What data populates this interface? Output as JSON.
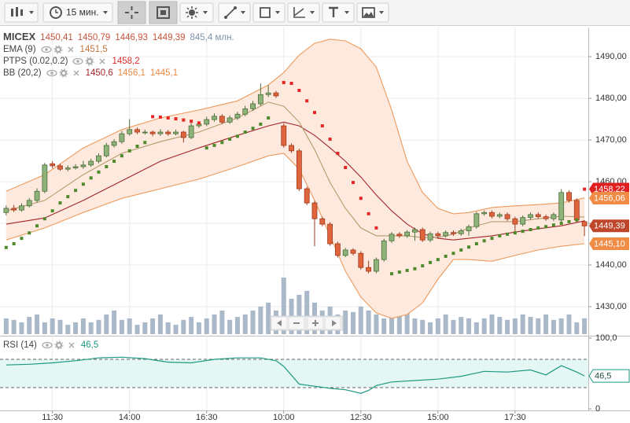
{
  "toolbar": {
    "interval": "15 мин."
  },
  "chart_data": [
    {
      "type": "candlestick",
      "title": "MICEX",
      "ohlc_labels": [
        "1450,41",
        "1450,79",
        "1446,93",
        "1449,39"
      ],
      "ohlc_color": "#c8553d",
      "volume_label": "845,4 млн.",
      "volume_label_color": "#7f93aa",
      "xlim": [
        -0.8,
        75.5
      ],
      "xticks": [
        {
          "value": 6,
          "label": "11:30"
        },
        {
          "value": 16,
          "label": "14:00"
        },
        {
          "value": 26,
          "label": "16:30"
        },
        {
          "value": 36,
          "label": "10:00"
        },
        {
          "value": 46,
          "label": "12:30"
        },
        {
          "value": 56,
          "label": "15:00"
        },
        {
          "value": 66,
          "label": "17:30"
        }
      ],
      "ylim": [
        1423.4,
        1497
      ],
      "yticks": [
        {
          "value": 1430,
          "label": "1430,00"
        },
        {
          "value": 1440,
          "label": "1440,00"
        },
        {
          "value": 1450,
          "label": "1450,00"
        },
        {
          "value": 1460,
          "label": "1460,00"
        },
        {
          "value": 1470,
          "label": "1470,00"
        },
        {
          "value": 1480,
          "label": "1480,00"
        },
        {
          "value": 1490,
          "label": "1490,00"
        }
      ],
      "grid": true,
      "open": [
        1452.6,
        1453.6,
        1453.2,
        1454.2,
        1455.5,
        1457.7,
        1464.3,
        1463.8,
        1463.0,
        1463.3,
        1463.6,
        1464.0,
        1464.9,
        1466.2,
        1468.7,
        1469.6,
        1471.5,
        1472.5,
        1471.9,
        1471.9,
        1471.5,
        1471.9,
        1471.5,
        1471.9,
        1470.6,
        1473.4,
        1473.8,
        1474.9,
        1475.7,
        1474.3,
        1475.3,
        1476.2,
        1477.5,
        1478.7,
        1480.9,
        1481.3,
        1473.4,
        1468.7,
        1467.4,
        1458.3,
        1454.9,
        1451.1,
        1449.8,
        1445.1,
        1442.3,
        1443.6,
        1442.8,
        1439.4,
        1438.5,
        1441.3,
        1445.8,
        1447.4,
        1447.0,
        1447.9,
        1448.5,
        1446.0,
        1447.5,
        1447.0,
        1447.8,
        1447.5,
        1448.2,
        1449.2,
        1452.3,
        1452.6,
        1451.7,
        1452.1,
        1451.1,
        1449.8,
        1451.4,
        1452.1,
        1451.6,
        1451.1,
        1450.8,
        1457.4,
        1455.5,
        1450.41
      ],
      "high": [
        1454.3,
        1454.4,
        1454.8,
        1456.1,
        1458.4,
        1464.5,
        1464.9,
        1464.3,
        1463.9,
        1464.2,
        1465.0,
        1465.5,
        1466.8,
        1469.3,
        1470.2,
        1472.2,
        1475.0,
        1473.0,
        1472.5,
        1472.3,
        1472.6,
        1472.4,
        1472.5,
        1472.2,
        1474.0,
        1474.4,
        1475.6,
        1476.4,
        1476.2,
        1475.9,
        1476.8,
        1478.2,
        1479.4,
        1483.6,
        1483.2,
        1481.8,
        1474.0,
        1469.2,
        1467.9,
        1458.8,
        1455.4,
        1451.6,
        1450.3,
        1445.6,
        1444.1,
        1444.0,
        1443.3,
        1441.0,
        1441.8,
        1446.3,
        1447.9,
        1447.9,
        1448.4,
        1449.0,
        1449.0,
        1448.0,
        1448.0,
        1448.3,
        1448.3,
        1448.7,
        1449.7,
        1452.8,
        1453.1,
        1453.1,
        1452.6,
        1452.6,
        1451.6,
        1451.9,
        1452.6,
        1452.6,
        1452.1,
        1452.6,
        1458.2,
        1457.9,
        1456.0,
        1450.79
      ],
      "low": [
        1451.9,
        1452.7,
        1452.8,
        1453.8,
        1455.0,
        1457.2,
        1463.2,
        1462.6,
        1462.5,
        1462.9,
        1463.1,
        1463.5,
        1464.4,
        1465.8,
        1468.2,
        1469.1,
        1471.0,
        1471.4,
        1471.3,
        1470.9,
        1471.0,
        1471.0,
        1471.1,
        1469.4,
        1470.2,
        1472.9,
        1473.3,
        1474.4,
        1473.8,
        1473.9,
        1474.8,
        1475.7,
        1477.0,
        1478.2,
        1480.3,
        1480.1,
        1468.2,
        1466.9,
        1457.8,
        1454.4,
        1444.5,
        1449.3,
        1444.6,
        1441.8,
        1441.9,
        1442.3,
        1438.9,
        1438.0,
        1438.0,
        1440.8,
        1445.3,
        1446.5,
        1446.5,
        1445.8,
        1445.5,
        1445.5,
        1446.5,
        1446.6,
        1447.0,
        1447.0,
        1447.0,
        1448.7,
        1451.8,
        1451.2,
        1451.2,
        1450.6,
        1447.4,
        1449.3,
        1450.9,
        1451.1,
        1450.6,
        1450.6,
        1450.3,
        1455.0,
        1450.3,
        1446.93
      ],
      "close": [
        1453.6,
        1453.2,
        1454.2,
        1455.5,
        1457.7,
        1464.0,
        1463.8,
        1463.0,
        1463.3,
        1463.6,
        1464.0,
        1464.9,
        1466.2,
        1468.7,
        1469.6,
        1471.5,
        1472.5,
        1471.9,
        1471.9,
        1471.5,
        1471.9,
        1471.5,
        1471.9,
        1470.6,
        1473.4,
        1473.8,
        1474.9,
        1475.7,
        1474.3,
        1475.3,
        1476.2,
        1477.5,
        1478.7,
        1480.9,
        1481.3,
        1480.6,
        1468.7,
        1467.4,
        1458.3,
        1454.9,
        1451.1,
        1449.8,
        1445.1,
        1442.3,
        1443.6,
        1442.8,
        1439.4,
        1438.5,
        1441.3,
        1445.8,
        1447.4,
        1447.0,
        1447.9,
        1448.5,
        1446.0,
        1447.5,
        1447.0,
        1447.8,
        1447.5,
        1448.2,
        1449.2,
        1452.3,
        1452.6,
        1451.7,
        1452.1,
        1451.1,
        1449.8,
        1451.4,
        1452.1,
        1451.6,
        1451.1,
        1452.1,
        1457.4,
        1455.5,
        1450.8,
        1449.39
      ],
      "up_color": "#8db37a",
      "up_border": "#4d6e3d",
      "down_color": "#e0653d",
      "down_border": "#9e3a1c",
      "volume": {
        "color": "#a9b9c9",
        "values": [
          840,
          760,
          630,
          920,
          1050,
          630,
          840,
          760,
          500,
          630,
          840,
          630,
          760,
          1050,
          1260,
          760,
          840,
          500,
          630,
          840,
          1050,
          630,
          500,
          760,
          920,
          630,
          840,
          1050,
          1260,
          760,
          920,
          1050,
          1260,
          1470,
          1680,
          1260,
          3020,
          1890,
          2100,
          2310,
          1680,
          1260,
          1470,
          1050,
          1260,
          1180,
          1470,
          1260,
          1050,
          840,
          920,
          1050,
          1260,
          840,
          760,
          630,
          840,
          1050,
          760,
          920,
          840,
          630,
          840,
          1050,
          920,
          760,
          840,
          1050,
          920,
          840,
          1050,
          760,
          840,
          1050,
          630,
          845.4
        ]
      },
      "bb": {
        "x": [
          0,
          5,
          10,
          15,
          20,
          25,
          30,
          34,
          36,
          38,
          40,
          42,
          44,
          46,
          48,
          50,
          52,
          54,
          56,
          58,
          60,
          63,
          66,
          69,
          72,
          75
        ],
        "fill": "#fde9dd",
        "upper": {
          "color": "#ee9a5c",
          "values": [
            1457.7,
            1461.7,
            1468.1,
            1472.5,
            1475.3,
            1477.2,
            1479.4,
            1483.2,
            1486.2,
            1490.4,
            1493.2,
            1494.2,
            1493.8,
            1491.9,
            1487.5,
            1477.2,
            1464.9,
            1457.4,
            1453.6,
            1452.3,
            1452.6,
            1453.8,
            1454.2,
            1454.5,
            1454.9,
            1456.1
          ]
        },
        "middle": {
          "color": "#a3262a",
          "values": [
            1449.8,
            1451.3,
            1455.5,
            1460.2,
            1464.9,
            1468.1,
            1471.1,
            1473.4,
            1474.3,
            1473.4,
            1471.1,
            1468.1,
            1464.9,
            1461.1,
            1456.8,
            1453.0,
            1449.8,
            1447.5,
            1446.4,
            1446.0,
            1446.4,
            1447.0,
            1447.9,
            1448.7,
            1449.4,
            1450.6
          ]
        },
        "lower": {
          "color": "#ee9a5c",
          "values": [
            1446.0,
            1448.9,
            1452.6,
            1456.0,
            1458.3,
            1460.6,
            1463.6,
            1466.2,
            1466.8,
            1463.0,
            1455.5,
            1447.0,
            1438.5,
            1432.3,
            1428.5,
            1427.2,
            1428.1,
            1430.9,
            1436.6,
            1441.3,
            1441.3,
            1440.9,
            1442.3,
            1443.6,
            1444.5,
            1445.1
          ]
        }
      },
      "ema": {
        "color": "#b39b6b",
        "x": [
          0,
          5,
          10,
          15,
          20,
          25,
          30,
          34,
          36,
          38,
          40,
          42,
          44,
          46,
          48,
          50,
          52,
          54,
          56,
          58,
          60,
          63,
          66,
          69,
          72,
          75
        ],
        "values": [
          1453.0,
          1455.5,
          1461.7,
          1466.8,
          1469.6,
          1471.9,
          1475.3,
          1479.1,
          1478.1,
          1474.3,
          1467.7,
          1459.8,
          1453.6,
          1448.9,
          1447.0,
          1447.0,
          1447.0,
          1446.6,
          1446.6,
          1447.4,
          1448.9,
          1450.4,
          1450.4,
          1451.1,
          1451.7,
          1451.5
        ]
      },
      "psar": {
        "up": {
          "color": "#4f8a2a",
          "values": [
            1444.2,
            1445.1,
            1446.4,
            1447.7,
            1449.4,
            1451.1,
            1453.0,
            1454.9,
            1456.4,
            1457.9,
            1459.4,
            1460.9,
            1462.3,
            1463.6,
            1464.9,
            1466.2,
            1467.4,
            1468.5,
            1469.4,
            null,
            null,
            null,
            null,
            null,
            null,
            null,
            1468.1,
            1468.7,
            1469.4,
            1470.2,
            1470.9,
            1471.9,
            1472.8,
            1473.8,
            1475.3,
            null,
            null,
            null,
            null,
            null,
            null,
            null,
            null,
            null,
            null,
            null,
            null,
            null,
            null,
            null,
            1437.9,
            1438.3,
            1438.7,
            1439.1,
            1439.8,
            1440.6,
            1441.3,
            1442.1,
            1442.8,
            1443.6,
            1444.3,
            1445.1,
            1445.8,
            1446.4,
            1447.0,
            1447.4,
            1447.7,
            1448.1,
            1448.5,
            1448.9,
            1449.2,
            1449.6,
            1450.0,
            1450.4,
            1450.8,
            null
          ]
        },
        "down": {
          "color": "#e32626",
          "values": [
            null,
            null,
            null,
            null,
            null,
            null,
            null,
            null,
            null,
            null,
            null,
            null,
            null,
            null,
            null,
            null,
            null,
            null,
            null,
            1475.6,
            1475.5,
            1475.3,
            1475.1,
            1474.8,
            1474.5,
            1474.1,
            null,
            null,
            null,
            null,
            null,
            null,
            null,
            null,
            null,
            null,
            1483.8,
            1483.6,
            1481.9,
            1479.4,
            1476.6,
            1473.4,
            1470.2,
            1466.8,
            1463.4,
            1459.8,
            1456.0,
            1452.3,
            1448.9,
            null,
            null,
            null,
            null,
            null,
            null,
            null,
            null,
            null,
            null,
            null,
            null,
            null,
            null,
            null,
            null,
            null,
            null,
            null,
            null,
            null,
            null,
            null,
            null,
            null,
            null,
            1458.2
          ]
        }
      },
      "legend": [
        {
          "name": "EMA (9)",
          "values": [
            {
              "label": "1451,5",
              "color": "#c0743c"
            }
          ]
        },
        {
          "name": "PTPS (0.02,0.2)",
          "values": [
            {
              "label": "1458,2",
              "color": "#dd2a2a"
            }
          ]
        },
        {
          "name": "BB (20,2)",
          "values": [
            {
              "label": "1450,6",
              "color": "#a3262a"
            },
            {
              "label": "1456,1",
              "color": "#ec8a44"
            },
            {
              "label": "1445,1",
              "color": "#ec8a44"
            }
          ]
        }
      ],
      "price_tags": [
        {
          "value": 1458.22,
          "label": "1458,22",
          "color": "#e02020"
        },
        {
          "value": 1456.06,
          "label": "1456,06",
          "color": "#f08c46"
        },
        {
          "value": 1449.39,
          "label": "1449,39",
          "color": "#c0462b"
        },
        {
          "value": 1445.1,
          "label": "1445,10",
          "color": "#f08c46"
        }
      ]
    },
    {
      "type": "line",
      "title": "RSI (14)",
      "legend_value": "46,5",
      "color": "#1d9a80",
      "xlim": [
        -0.8,
        75.5
      ],
      "ylim": [
        0,
        100
      ],
      "yticks": [
        {
          "value": 0,
          "label": "0"
        },
        {
          "value": 100,
          "label": "100,0"
        }
      ],
      "levels": [
        30,
        70
      ],
      "level_fill": "#e4f7f4",
      "x": [
        0,
        3,
        6,
        9,
        12,
        15,
        18,
        21,
        24,
        27,
        30,
        33,
        35,
        36,
        38,
        40,
        42,
        44,
        46,
        47,
        48,
        50,
        53,
        56,
        59,
        62,
        65,
        68,
        70,
        72,
        74,
        75
      ],
      "values": [
        62,
        63,
        65,
        68,
        72,
        73,
        71,
        66,
        65,
        70,
        72,
        72,
        68,
        60,
        35,
        32,
        29,
        27,
        22,
        26,
        33,
        38,
        40,
        42,
        46,
        53,
        52,
        55,
        48,
        61,
        52,
        46.5
      ],
      "price_tag": {
        "value": 46.5,
        "label": "46,5"
      }
    }
  ]
}
